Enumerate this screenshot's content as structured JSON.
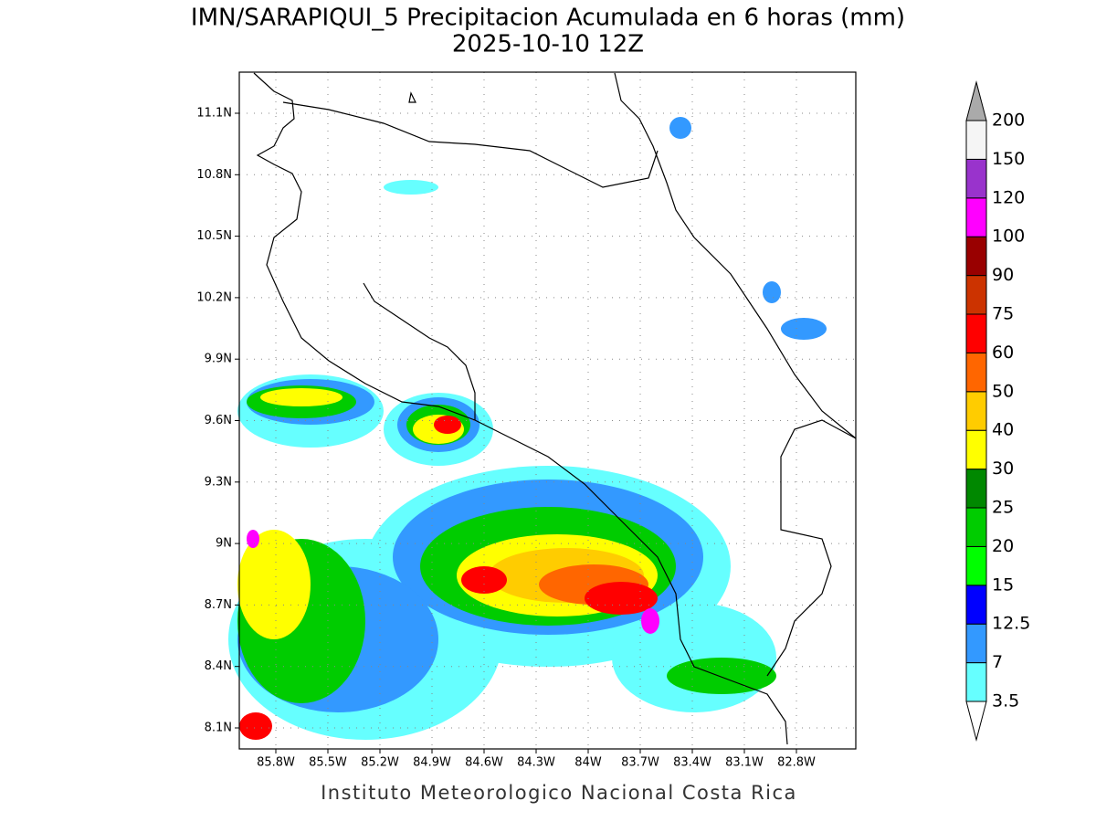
{
  "header": {
    "title": "IMN/SARAPIQUI_5 Precipitacion Acumulada en 6 horas (mm)",
    "subtitle": "2025-10-10 12Z"
  },
  "map": {
    "lat_labels": [
      "11.1N",
      "10.8N",
      "10.5N",
      "10.2N",
      "9.9N",
      "9.6N",
      "9.3N",
      "9N",
      "8.7N",
      "8.4N",
      "8.1N"
    ],
    "lon_labels": [
      "85.8W",
      "85.5W",
      "85.2W",
      "84.9W",
      "84.6W",
      "84.3W",
      "84W",
      "83.7W",
      "83.4W",
      "83.1W",
      "82.8W"
    ]
  },
  "colorbar": {
    "labels": [
      "3.5",
      "7",
      "12.5",
      "15",
      "20",
      "25",
      "30",
      "40",
      "50",
      "60",
      "75",
      "90",
      "100",
      "120",
      "150",
      "200"
    ],
    "colors": [
      "#66ffff",
      "#3399ff",
      "#0000ff",
      "#00ff00",
      "#00cc00",
      "#008800",
      "#ffff00",
      "#ffcc00",
      "#ff6600",
      "#ff0000",
      "#cc3300",
      "#990000",
      "#ff00ff",
      "#9933cc",
      "#f5f5f5"
    ],
    "below_color": "#ffffff",
    "above_color": "#aaaaaa"
  },
  "footer": "Instituto Meteorologico Nacional Costa Rica"
}
